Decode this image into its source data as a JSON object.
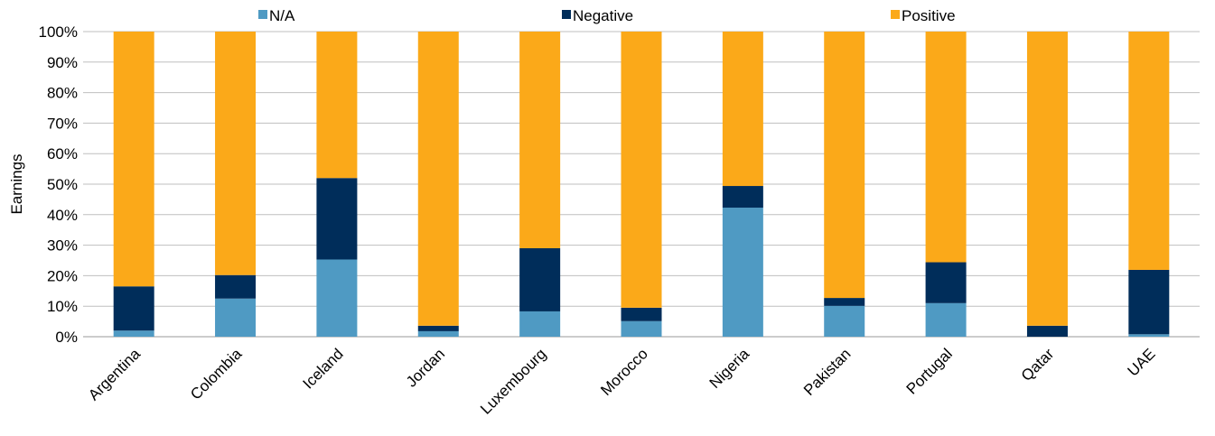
{
  "chart_data": {
    "type": "bar",
    "stacked": true,
    "title": "",
    "xlabel": "",
    "ylabel": "Earnings",
    "ylim": [
      0,
      100
    ],
    "yticks": [
      "0%",
      "10%",
      "20%",
      "30%",
      "40%",
      "50%",
      "60%",
      "70%",
      "80%",
      "90%",
      "100%"
    ],
    "grid": true,
    "legend_position": "top",
    "categories": [
      "Argentina",
      "Colombia",
      "Iceland",
      "Jordan",
      "Luxembourg",
      "Morocco",
      "Nigeria",
      "Pakistan",
      "Portugal",
      "Qatar",
      "UAE"
    ],
    "series": [
      {
        "name": "N/A",
        "color": "#4F9AC3",
        "values": [
          2,
          12.5,
          25.3,
          1.8,
          8.3,
          5.1,
          42.3,
          10.1,
          11,
          0,
          0.8
        ]
      },
      {
        "name": "Negative",
        "color": "#002D5A",
        "values": [
          14.5,
          7.7,
          26.7,
          1.8,
          20.7,
          4.4,
          7.1,
          2.6,
          13.4,
          3.6,
          21.1
        ]
      },
      {
        "name": "Positive",
        "color": "#FBA919",
        "values": [
          83.5,
          79.8,
          48,
          96.4,
          71,
          90.5,
          50.6,
          87.3,
          75.6,
          96.4,
          78.1
        ]
      }
    ]
  }
}
